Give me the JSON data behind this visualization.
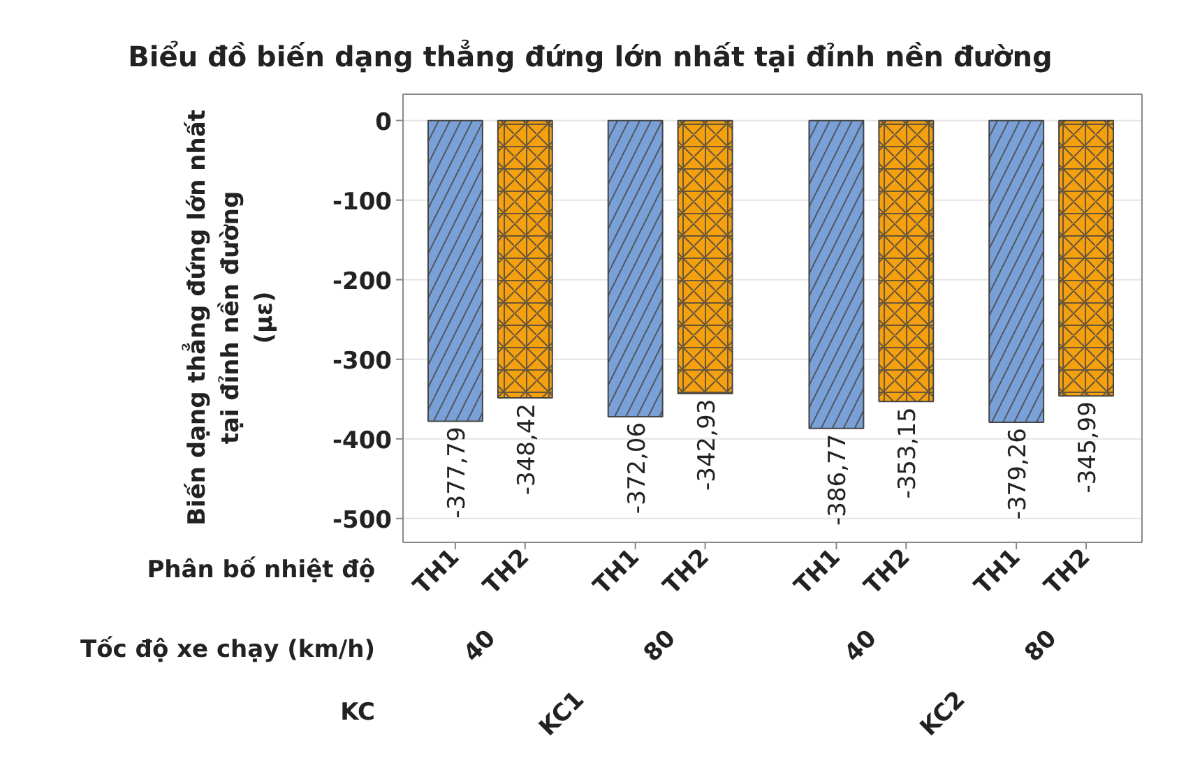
{
  "chart_data": {
    "type": "bar",
    "title": "Biểu đồ biến dạng thẳng đứng lớn nhất tại đỉnh nền đường",
    "ylabel": "Biến dạng thẳng đứng lớn nhất\ntại đỉnh nền đường\n(με)",
    "categories": [
      "TH1",
      "TH2",
      "TH1",
      "TH2",
      "TH1",
      "TH2",
      "TH1",
      "TH2"
    ],
    "values": [
      -377.79,
      -348.42,
      -372.06,
      -342.93,
      -386.77,
      -353.15,
      -379.26,
      -345.99
    ],
    "value_labels": [
      "-377,79",
      "-348,42",
      "-372,06",
      "-342,93",
      "-386,77",
      "-353,15",
      "-379,26",
      "-345,99"
    ],
    "colors": [
      "#7aa0d8",
      "#f5a00f",
      "#7aa0d8",
      "#f5a00f",
      "#7aa0d8",
      "#f5a00f",
      "#7aa0d8",
      "#f5a00f"
    ],
    "annotations": [
      "Phân bố nhiệt độ",
      "Tốc độ xe chạy (km/h)",
      "40",
      "80",
      "40",
      "80",
      "KC",
      "KC1",
      "KC2"
    ],
    "ylim": [
      -530,
      33
    ],
    "yticks": [
      0,
      -100,
      -200,
      -300,
      -400,
      -500
    ],
    "grid": "y"
  }
}
